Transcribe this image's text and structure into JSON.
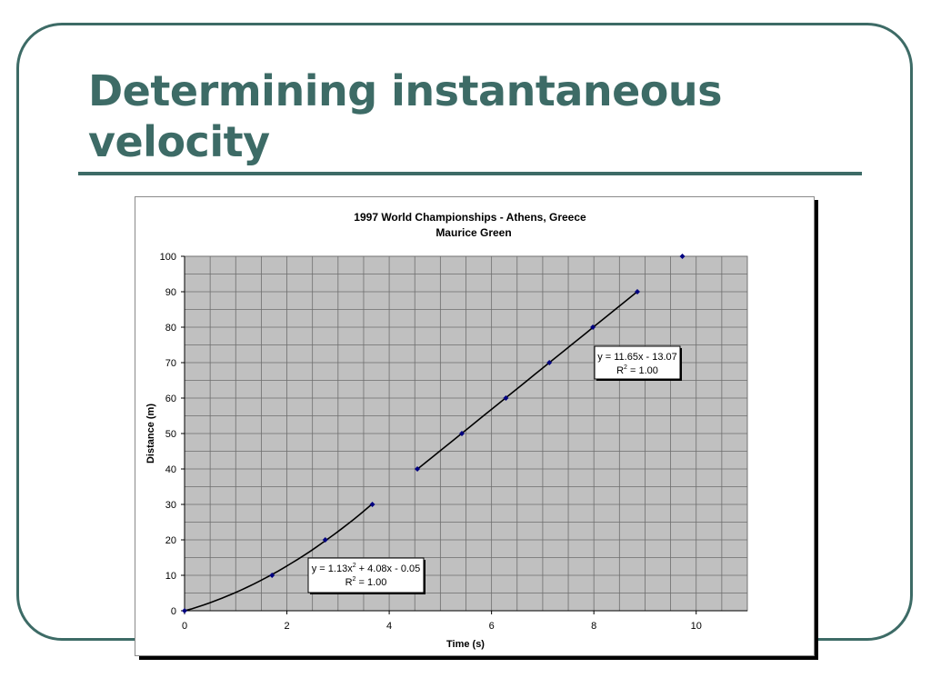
{
  "slide": {
    "title_line1": "Determining instantaneous",
    "title_line2": "velocity",
    "accent_color": "#3d6b66"
  },
  "chart_data": {
    "type": "scatter",
    "title": "1997 World Championships - Athens, Greece",
    "subtitle": "Maurice Green",
    "xlabel": "Time (s)",
    "ylabel": "Distance (m)",
    "xlim": [
      0,
      11
    ],
    "ylim": [
      0,
      100
    ],
    "xticks": [
      0,
      2,
      4,
      6,
      8,
      10
    ],
    "yticks": [
      0,
      10,
      20,
      30,
      40,
      50,
      60,
      70,
      80,
      90,
      100
    ],
    "grid": true,
    "plot_background": "#c0c0c0",
    "marker_color": "#000080",
    "series": [
      {
        "name": "Distance",
        "points": [
          [
            0,
            0
          ],
          [
            1.71,
            10
          ],
          [
            2.75,
            20
          ],
          [
            3.67,
            30
          ],
          [
            4.55,
            40
          ],
          [
            5.42,
            50
          ],
          [
            6.28,
            60
          ],
          [
            7.13,
            70
          ],
          [
            7.98,
            80
          ],
          [
            8.85,
            90
          ],
          [
            9.73,
            100
          ]
        ]
      }
    ],
    "trendlines": [
      {
        "kind": "polynomial",
        "coefficients": [
          1.13,
          4.08,
          -0.05
        ],
        "x_range": [
          0,
          3.67
        ],
        "label_parts": [
          "y = 1.13x",
          "2",
          " + 4.08x - 0.05"
        ],
        "r2_parts": [
          "R",
          "2",
          " = 1.00"
        ]
      },
      {
        "kind": "linear",
        "coefficients": [
          11.65,
          -13.07
        ],
        "x_range": [
          4.55,
          8.85
        ],
        "label_parts": [
          "y = 11.65x - 13.07",
          "",
          ""
        ],
        "r2_parts": [
          "R",
          "2",
          " = 1.00"
        ]
      }
    ]
  }
}
